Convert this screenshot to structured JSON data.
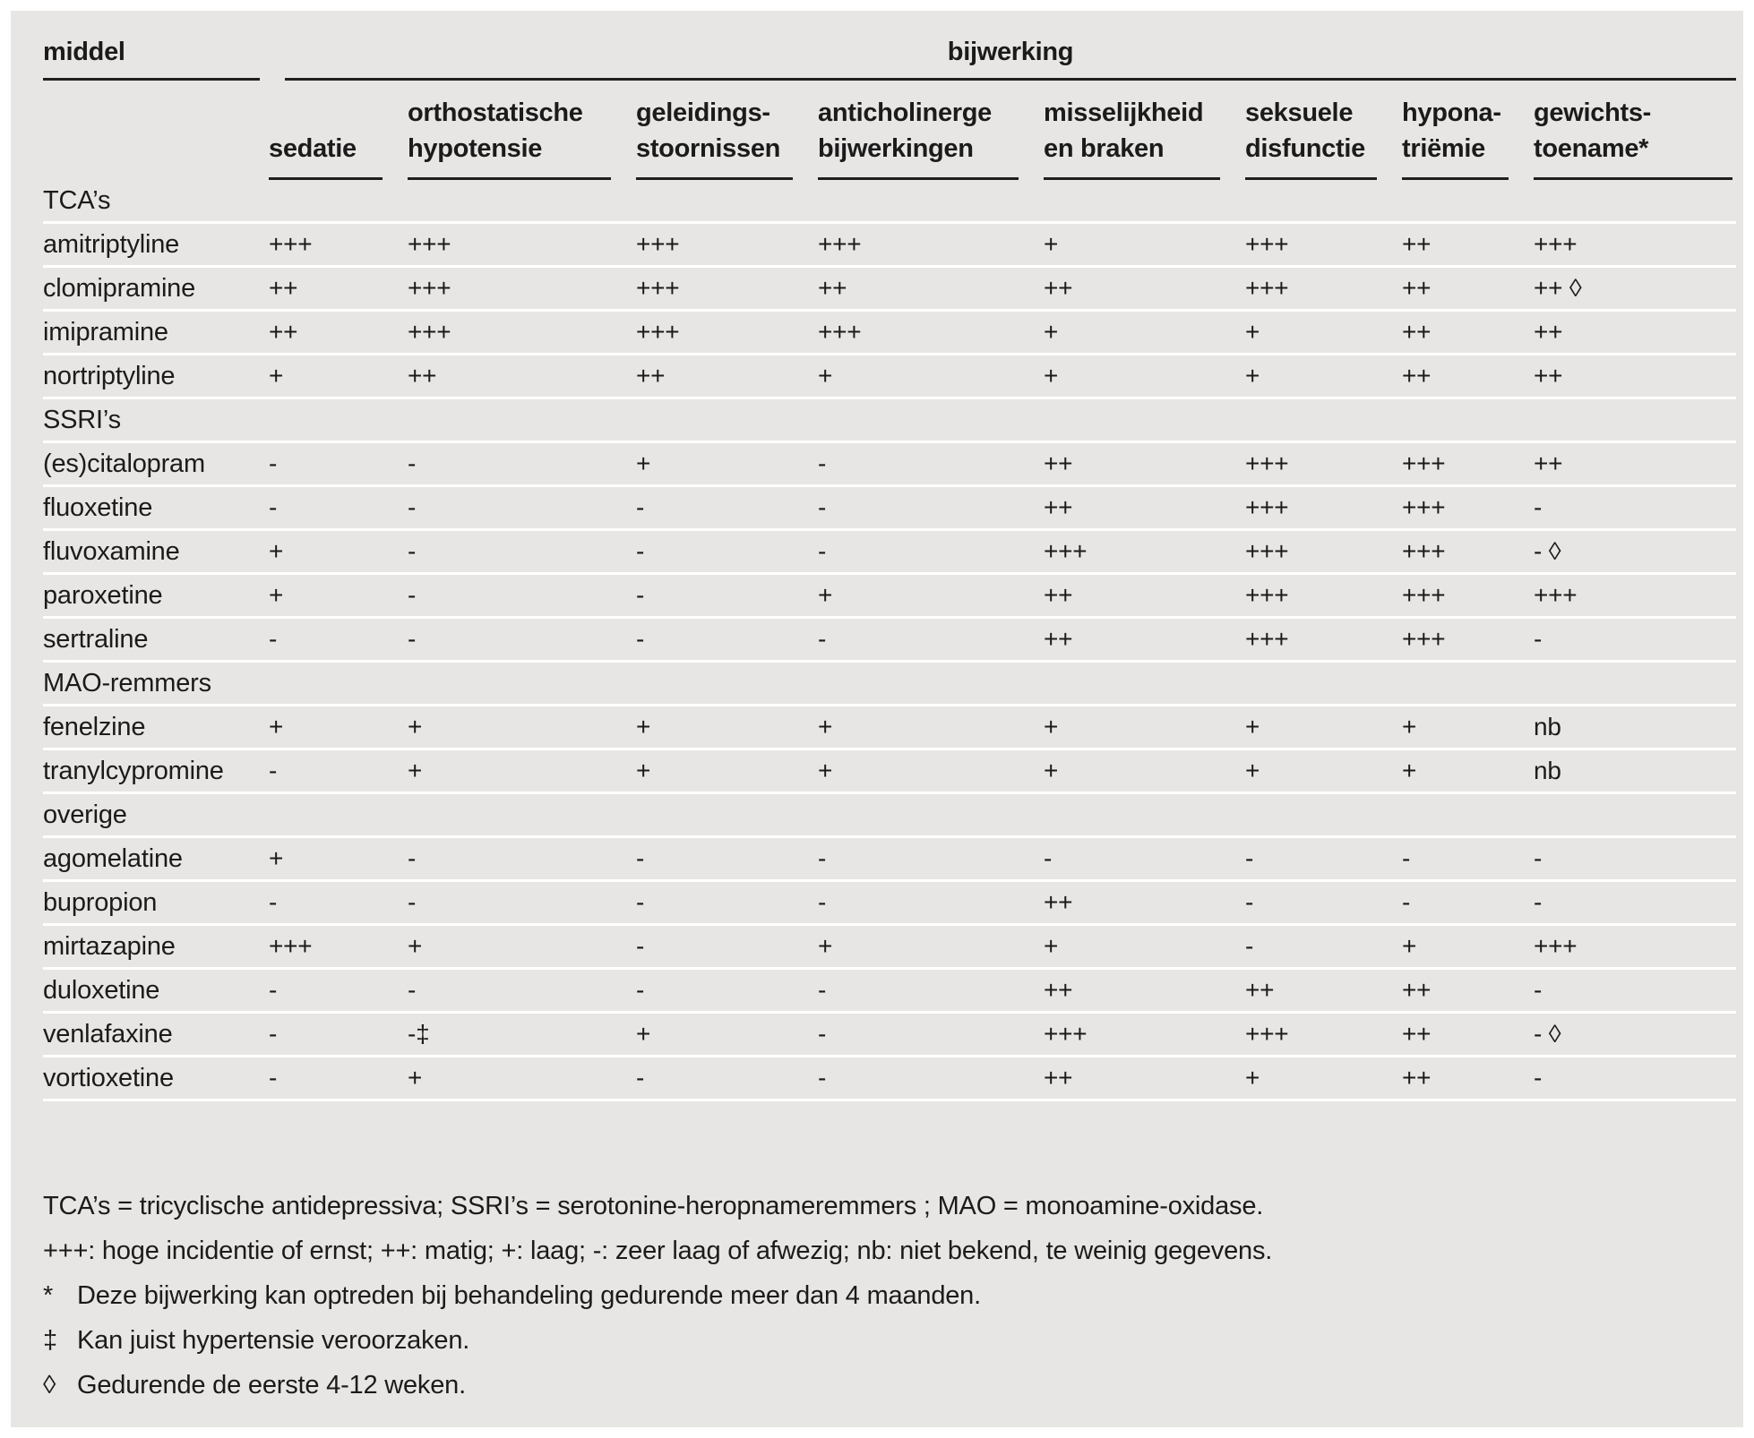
{
  "colors": {
    "background": "#e8e6e4",
    "text": "#1b1b1b",
    "rule_dark": "#1f1f1f",
    "rule_light": "#ffffff"
  },
  "table": {
    "left_header": "middel",
    "right_header": "bijwerking",
    "columns": [
      {
        "line1": "",
        "line2": "sedatie"
      },
      {
        "line1": "orthostatische",
        "line2": "hypotensie"
      },
      {
        "line1": "geleidings-",
        "line2": "stoornissen"
      },
      {
        "line1": "anticholinerge",
        "line2": "bijwerkingen"
      },
      {
        "line1": "misselijkheid",
        "line2": "en braken"
      },
      {
        "line1": "seksuele",
        "line2": "disfunctie"
      },
      {
        "line1": "hypona-",
        "line2": "triëmie"
      },
      {
        "line1": "gewichts-",
        "line2": "toename*"
      }
    ],
    "rows": [
      {
        "type": "group",
        "label": "TCA’s"
      },
      {
        "type": "drug",
        "label": "amitriptyline",
        "values": [
          "+++",
          "+++",
          "+++",
          "+++",
          "+",
          "+++",
          "++",
          "+++"
        ]
      },
      {
        "type": "drug",
        "label": "clomipramine",
        "values": [
          "++",
          "+++",
          "+++",
          "++",
          "++",
          "+++",
          "++",
          "++ ◊"
        ]
      },
      {
        "type": "drug",
        "label": "imipramine",
        "values": [
          "++",
          "+++",
          "+++",
          "+++",
          "+",
          "+",
          "++",
          "++"
        ]
      },
      {
        "type": "drug",
        "label": "nortriptyline",
        "values": [
          "+",
          "++",
          "++",
          "+",
          "+",
          "+",
          "++",
          "++"
        ]
      },
      {
        "type": "group",
        "label": "SSRI’s"
      },
      {
        "type": "drug",
        "label": "(es)citalopram",
        "values": [
          "-",
          "-",
          "+",
          "-",
          "++",
          "+++",
          "+++",
          "++"
        ]
      },
      {
        "type": "drug",
        "label": "fluoxetine",
        "values": [
          "-",
          "-",
          "-",
          "-",
          "++",
          "+++",
          "+++",
          "-"
        ]
      },
      {
        "type": "drug",
        "label": "fluvoxamine",
        "values": [
          "+",
          "-",
          "-",
          "-",
          "+++",
          "+++",
          "+++",
          "- ◊"
        ]
      },
      {
        "type": "drug",
        "label": "paroxetine",
        "values": [
          "+",
          "-",
          "-",
          "+",
          "++",
          "+++",
          "+++",
          "+++"
        ]
      },
      {
        "type": "drug",
        "label": "sertraline",
        "values": [
          "-",
          "-",
          "-",
          "-",
          "++",
          "+++",
          "+++",
          "-"
        ]
      },
      {
        "type": "group",
        "label": "MAO-remmers"
      },
      {
        "type": "drug",
        "label": "fenelzine",
        "values": [
          "+",
          "+",
          "+",
          "+",
          "+",
          "+",
          "+",
          "nb"
        ]
      },
      {
        "type": "drug",
        "label": "tranylcypromine",
        "values": [
          "-",
          "+",
          "+",
          "+",
          "+",
          "+",
          "+",
          "nb"
        ]
      },
      {
        "type": "group",
        "label": "overige"
      },
      {
        "type": "drug",
        "label": "agomelatine",
        "values": [
          "+",
          "-",
          "-",
          "-",
          "-",
          "-",
          "-",
          "-"
        ]
      },
      {
        "type": "drug",
        "label": "bupropion",
        "values": [
          "-",
          "-",
          "-",
          "-",
          "++",
          "-",
          "-",
          "-"
        ]
      },
      {
        "type": "drug",
        "label": "mirtazapine",
        "values": [
          "+++",
          "+",
          "-",
          "+",
          "+",
          "-",
          "+",
          "+++"
        ]
      },
      {
        "type": "drug",
        "label": "duloxetine",
        "values": [
          "-",
          "-",
          "-",
          "-",
          "++",
          "++",
          "++",
          "-"
        ]
      },
      {
        "type": "drug",
        "label": "venlafaxine",
        "values": [
          "-",
          "-‡",
          "+",
          "-",
          "+++",
          "+++",
          "++",
          "- ◊"
        ]
      },
      {
        "type": "drug",
        "label": "vortioxetine",
        "values": [
          "-",
          "+",
          "-",
          "-",
          "++",
          "+",
          "++",
          "-"
        ]
      }
    ]
  },
  "notes": [
    {
      "marker": "",
      "text": "TCA’s = tricyclische antidepressiva; SSRI’s = serotonine-heropnameremmers ; MAO = monoamine-oxidase."
    },
    {
      "marker": "",
      "text": "+++: hoge incidentie of ernst; ++: matig; +: laag; -: zeer laag of afwezig; nb: niet bekend, te weinig gegevens."
    },
    {
      "marker": "*",
      "text": "Deze bijwerking kan optreden bij behandeling gedurende meer dan 4 maanden."
    },
    {
      "marker": "‡",
      "text": "Kan juist hypertensie veroorzaken."
    },
    {
      "marker": "◊",
      "text": "Gedurende de eerste 4-12 weken."
    }
  ]
}
